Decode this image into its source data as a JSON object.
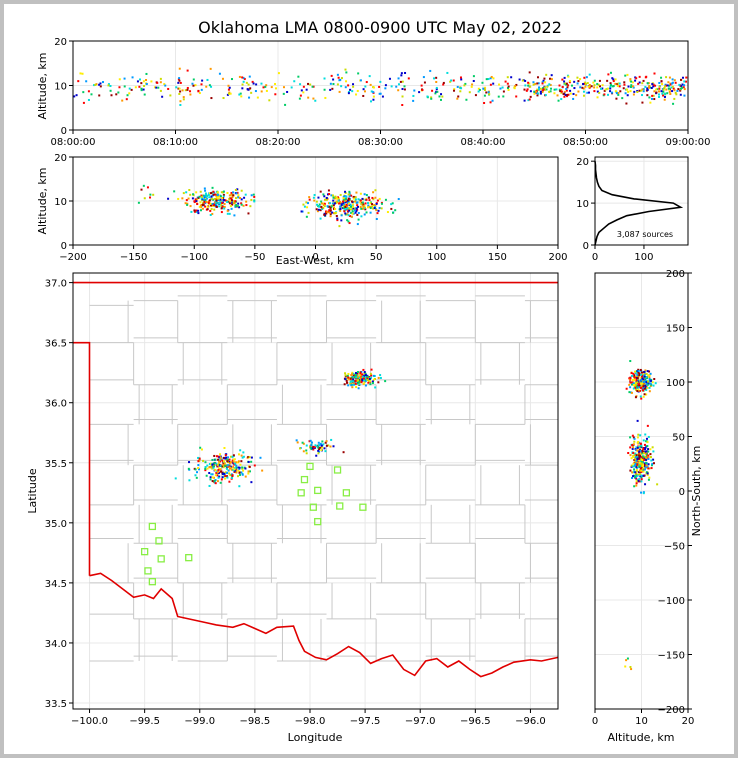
{
  "title": "Oklahoma LMA 0800-0900 UTC May 02, 2022",
  "colors": {
    "border_state": "#e00000",
    "county_lines": "#c8c8c8",
    "station_marker": "#88ee44",
    "grid": "#e8e8e8",
    "palette": [
      "#0000cc",
      "#0099ff",
      "#00dddd",
      "#00cc66",
      "#ccdd00",
      "#ffee00",
      "#ff9900",
      "#ff0000",
      "#990000"
    ]
  },
  "panels": {
    "time_height": {
      "ylabel": "Altitude, km",
      "yticks": [
        "0",
        "10",
        "20"
      ],
      "xticks": [
        "08:00:00",
        "08:10:00",
        "08:20:00",
        "08:30:00",
        "08:40:00",
        "08:50:00",
        "09:00:00"
      ]
    },
    "ew_height": {
      "ylabel": "Altitude, km",
      "xlabel": "East-West, km",
      "yticks": [
        "0",
        "10",
        "20"
      ],
      "xticks": [
        "−200",
        "−150",
        "−100",
        "−50",
        "0",
        "50",
        "100",
        "150",
        "200"
      ]
    },
    "histogram": {
      "yticks": [
        "0",
        "10",
        "20"
      ],
      "xticks": [
        "0",
        "100"
      ],
      "annotation": "3,087 sources"
    },
    "plan_view": {
      "ylabel": "Latitude",
      "xlabel": "Longitude",
      "yticks": [
        "37.0",
        "36.5",
        "36.0",
        "35.5",
        "35.0",
        "34.5",
        "34.0",
        "33.5"
      ],
      "xticks": [
        "−100.0",
        "−99.5",
        "−99.0",
        "−98.5",
        "−98.0",
        "−97.5",
        "−97.0",
        "−96.5",
        "−96.0"
      ]
    },
    "ns_height": {
      "ylabel": "North-South, km",
      "xlabel": "Altitude, km",
      "yticks": [
        "200",
        "150",
        "100",
        "50",
        "0",
        "−50",
        "−100",
        "−150",
        "−200"
      ],
      "xticks": [
        "0",
        "10",
        "20"
      ]
    }
  },
  "chart_data": [
    {
      "type": "scatter",
      "panel": "time_height",
      "xlim": [
        "08:00:00",
        "09:00:00"
      ],
      "ylim": [
        0,
        20
      ],
      "xlabel": "",
      "ylabel": "Altitude, km",
      "clusters": [
        {
          "t_start_min": 0,
          "t_end_min": 60,
          "alt_center_km": 9.5,
          "alt_spread_km": 1.6,
          "density": 0.55
        },
        {
          "t_start_min": 44,
          "t_end_min": 60,
          "alt_center_km": 9.5,
          "alt_spread_km": 1.2,
          "density": 1.0
        }
      ]
    },
    {
      "type": "scatter",
      "panel": "ew_height",
      "xlim": [
        -200,
        200
      ],
      "ylim": [
        0,
        20
      ],
      "xlabel": "East-West, km",
      "ylabel": "Altitude, km",
      "clusters": [
        {
          "x_center_km": -82,
          "x_spread_km": 22,
          "alt_center_km": 10,
          "alt_spread_km": 1.3,
          "n": 260
        },
        {
          "x_center_km": 25,
          "x_spread_km": 25,
          "alt_center_km": 9,
          "alt_spread_km": 1.5,
          "n": 320
        },
        {
          "x_center_km": -140,
          "x_spread_km": 8,
          "alt_center_km": 12,
          "alt_spread_km": 0.8,
          "n": 8
        }
      ]
    },
    {
      "type": "line",
      "panel": "histogram",
      "xlim": [
        0,
        190
      ],
      "ylim": [
        0,
        21
      ],
      "xlabel": "",
      "ylabel": "",
      "alt_km": [
        0,
        1,
        2,
        3,
        4,
        5,
        6,
        7,
        8,
        9,
        10,
        11,
        12,
        13,
        14,
        15,
        16,
        17,
        18,
        19,
        20
      ],
      "source_counts": [
        0,
        2,
        4,
        8,
        18,
        28,
        45,
        65,
        110,
        175,
        160,
        80,
        35,
        14,
        8,
        5,
        3,
        2,
        1,
        1,
        0
      ],
      "annotation": "3,087 sources"
    },
    {
      "type": "scatter",
      "panel": "plan_view",
      "xlim": [
        -100.15,
        -95.75
      ],
      "ylim": [
        33.45,
        37.08
      ],
      "xlabel": "Longitude",
      "ylabel": "Latitude",
      "clusters": [
        {
          "lon": -98.78,
          "lat": 35.46,
          "spread_lon": 0.22,
          "spread_lat": 0.1,
          "n": 260
        },
        {
          "lon": -97.95,
          "lat": 35.64,
          "spread_lon": 0.15,
          "spread_lat": 0.04,
          "n": 60
        },
        {
          "lon": -97.55,
          "lat": 36.2,
          "spread_lon": 0.13,
          "spread_lat": 0.05,
          "n": 180
        }
      ],
      "stations": [
        [
          -99.43,
          34.97
        ],
        [
          -99.37,
          34.85
        ],
        [
          -99.5,
          34.76
        ],
        [
          -99.35,
          34.7
        ],
        [
          -99.47,
          34.6
        ],
        [
          -99.43,
          34.51
        ],
        [
          -99.1,
          34.71
        ],
        [
          -98.0,
          35.47
        ],
        [
          -98.05,
          35.36
        ],
        [
          -98.08,
          35.25
        ],
        [
          -97.93,
          35.27
        ],
        [
          -97.97,
          35.13
        ],
        [
          -97.93,
          35.01
        ],
        [
          -97.75,
          35.44
        ],
        [
          -97.67,
          35.25
        ],
        [
          -97.73,
          35.14
        ],
        [
          -97.52,
          35.13
        ]
      ]
    },
    {
      "type": "scatter",
      "panel": "ns_height",
      "xlim": [
        0,
        20
      ],
      "ylim": [
        -200,
        200
      ],
      "xlabel": "Altitude, km",
      "ylabel": "North-South, km",
      "clusters": [
        {
          "alt_center_km": 9.8,
          "alt_spread_km": 1.6,
          "ns_center_km": 100,
          "ns_spread_km": 9,
          "n": 220
        },
        {
          "alt_center_km": 9.8,
          "alt_spread_km": 1.6,
          "ns_center_km": 28,
          "ns_spread_km": 16,
          "n": 320
        },
        {
          "alt_center_km": 7.5,
          "alt_spread_km": 0.8,
          "ns_center_km": -160,
          "ns_spread_km": 8,
          "n": 5
        }
      ]
    }
  ]
}
